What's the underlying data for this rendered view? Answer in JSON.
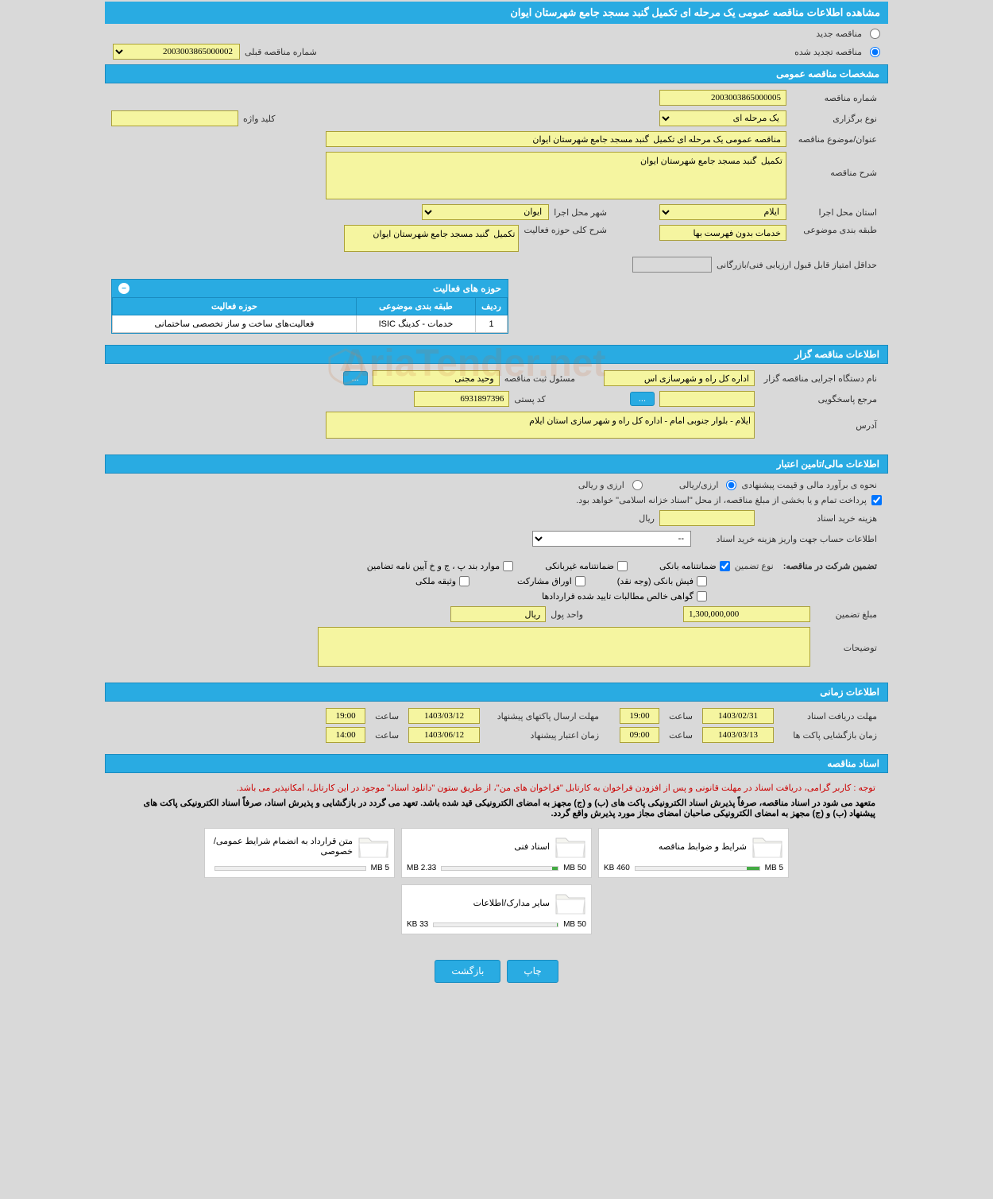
{
  "page": {
    "title": "مشاهده اطلاعات مناقصه عمومی یک مرحله ای تکمیل گنبد مسجد جامع شهرستان ایوان"
  },
  "top_radio": {
    "new": "مناقصه جدید",
    "renewed": "مناقصه تجدید شده",
    "prev_number_label": "شماره مناقصه قبلی",
    "prev_number": "2003003865000002"
  },
  "sections": {
    "general": "مشخصات مناقصه عمومی",
    "organizer": "اطلاعات مناقصه گزار",
    "financial": "اطلاعات مالی/تامین اعتبار",
    "timing": "اطلاعات زمانی",
    "documents": "اسناد مناقصه"
  },
  "general": {
    "number_label": "شماره مناقصه",
    "number": "2003003865000005",
    "type_label": "نوع برگزاری",
    "type": "یک مرحله ای",
    "keyword_label": "کلید واژه",
    "keyword": "",
    "subject_label": "عنوان/موضوع مناقصه",
    "subject": "مناقصه عمومی یک مرحله ای تکمیل  گنبد مسجد جامع شهرستان ایوان",
    "desc_label": "شرح مناقصه",
    "desc": "تکمیل  گنبد مسجد جامع شهرستان ایوان",
    "province_label": "استان محل اجرا",
    "province": "ایلام",
    "city_label": "شهر محل اجرا",
    "city": "ایوان",
    "classification_label": "طبقه بندی موضوعی",
    "classification": "خدمات بدون فهرست بها",
    "activity_summary_label": "شرح کلی حوزه فعالیت",
    "activity_summary": "تکمیل  گنبد مسجد جامع شهرستان ایوان",
    "min_score_label": "حداقل امتیاز قابل قبول ارزیابی فنی/بازرگانی",
    "min_score": ""
  },
  "activities": {
    "panel_title": "حوزه های فعالیت",
    "cols": {
      "row": "ردیف",
      "classification": "طبقه بندی موضوعی",
      "field": "حوزه فعالیت"
    },
    "rows": [
      {
        "n": "1",
        "classification": "خدمات - کدینگ ISIC",
        "field": "فعالیت‌های ساخت و ساز تخصصی ساختمانی"
      }
    ]
  },
  "organizer": {
    "exec_label": "نام دستگاه اجرایی مناقصه گزار",
    "exec": "اداره کل راه و شهرسازی اس",
    "reg_officer_label": "مسئول ثبت مناقصه",
    "reg_officer": "وحید مجنی",
    "more": "...",
    "response_ref_label": "مرجع پاسخگویی",
    "response_ref": "",
    "postal_label": "کد پستی",
    "postal": "6931897396",
    "address_label": "آدرس",
    "address": "ایلام - بلوار جنوبی امام - اداره کل راه و شهر سازی استان ایلام"
  },
  "financial": {
    "estimate_label": "نحوه ی برآورد مالی و قیمت پیشنهادی",
    "rial": "ارزی/ریالی",
    "foreign": "ارزی و ریالی",
    "treasury_note": "پرداخت تمام و یا بخشی از مبلغ مناقصه، از محل \"اسناد خزانه اسلامی\" خواهد بود.",
    "doc_cost_label": "هزینه خرید اسناد",
    "doc_cost": "",
    "doc_cost_unit": "ریال",
    "account_label": "اطلاعات حساب جهت واریز هزینه خرید اسناد",
    "account": "--",
    "guarantee_label": "تضمین شرکت در مناقصه:",
    "guarantee_type_label": "نوع تضمین",
    "g_bank": "ضمانتنامه بانکی",
    "g_nonbank": "ضمانتنامه غیربانکی",
    "g_cases": "موارد بند پ ، ج و خ آیین نامه تضامین",
    "g_cash": "فیش بانکی (وجه نقد)",
    "g_bonds": "اوراق مشارکت",
    "g_deed": "وثیقه ملکی",
    "g_receivables": "گواهی خالص مطالبات تایید شده قراردادها",
    "amount_label": "مبلغ تضمین",
    "amount": "1,300,000,000",
    "currency_label": "واحد پول",
    "currency": "ریال",
    "notes_label": "توضیحات",
    "notes": ""
  },
  "timing": {
    "receive_deadline_label": "مهلت دریافت اسناد",
    "receive_deadline_date": "1403/02/31",
    "receive_deadline_time": "19:00",
    "submit_deadline_label": "مهلت ارسال پاکتهای پیشنهاد",
    "submit_deadline_date": "1403/03/12",
    "submit_deadline_time": "19:00",
    "open_time_label": "زمان بازگشایی پاکت ها",
    "open_date": "1403/03/13",
    "open_time": "09:00",
    "validity_label": "زمان اعتبار پیشنهاد",
    "validity_date": "1403/06/12",
    "validity_time": "14:00",
    "time_word": "ساعت"
  },
  "documents": {
    "note1": "توجه : کاربر گرامی، دریافت اسناد در مهلت قانونی و پس از افزودن فراخوان به کارتابل \"فراخوان های من\"، از طریق ستون \"دانلود اسناد\" موجود در این کارتابل، امکانپذیر می باشد.",
    "note2": "متعهد می شود در اسناد مناقصه، صرفاً پذیرش اسناد الکترونیکی پاکت های (ب) و (ج) مجهز به امضای الکترونیکی قید شده باشد. تعهد می گردد در بازگشایی و پذیرش اسناد، صرفاً اسناد الکترونیکی پاکت های پیشنهاد (ب) و (ج) مجهز به امضای الکترونیکی صاحبان امضای مجاز مورد پذیرش واقع گردد.",
    "items": [
      {
        "title": "شرایط و ضوابط مناقصه",
        "size": "460 KB",
        "max": "5 MB",
        "fill": 10
      },
      {
        "title": "اسناد فنی",
        "size": "2.33 MB",
        "max": "50 MB",
        "fill": 5
      },
      {
        "title": "متن قرارداد به انضمام شرایط عمومی/خصوصی",
        "size": "",
        "max": "5 MB",
        "fill": 0
      },
      {
        "title": "سایر مدارک/اطلاعات",
        "size": "33 KB",
        "max": "50 MB",
        "fill": 1
      }
    ]
  },
  "footer": {
    "print": "چاپ",
    "back": "بازگشت"
  },
  "watermark": "AriaTender.net",
  "colors": {
    "primary": "#29abe2",
    "yellow": "#f5f5a0",
    "bg": "#d9d9d9"
  }
}
